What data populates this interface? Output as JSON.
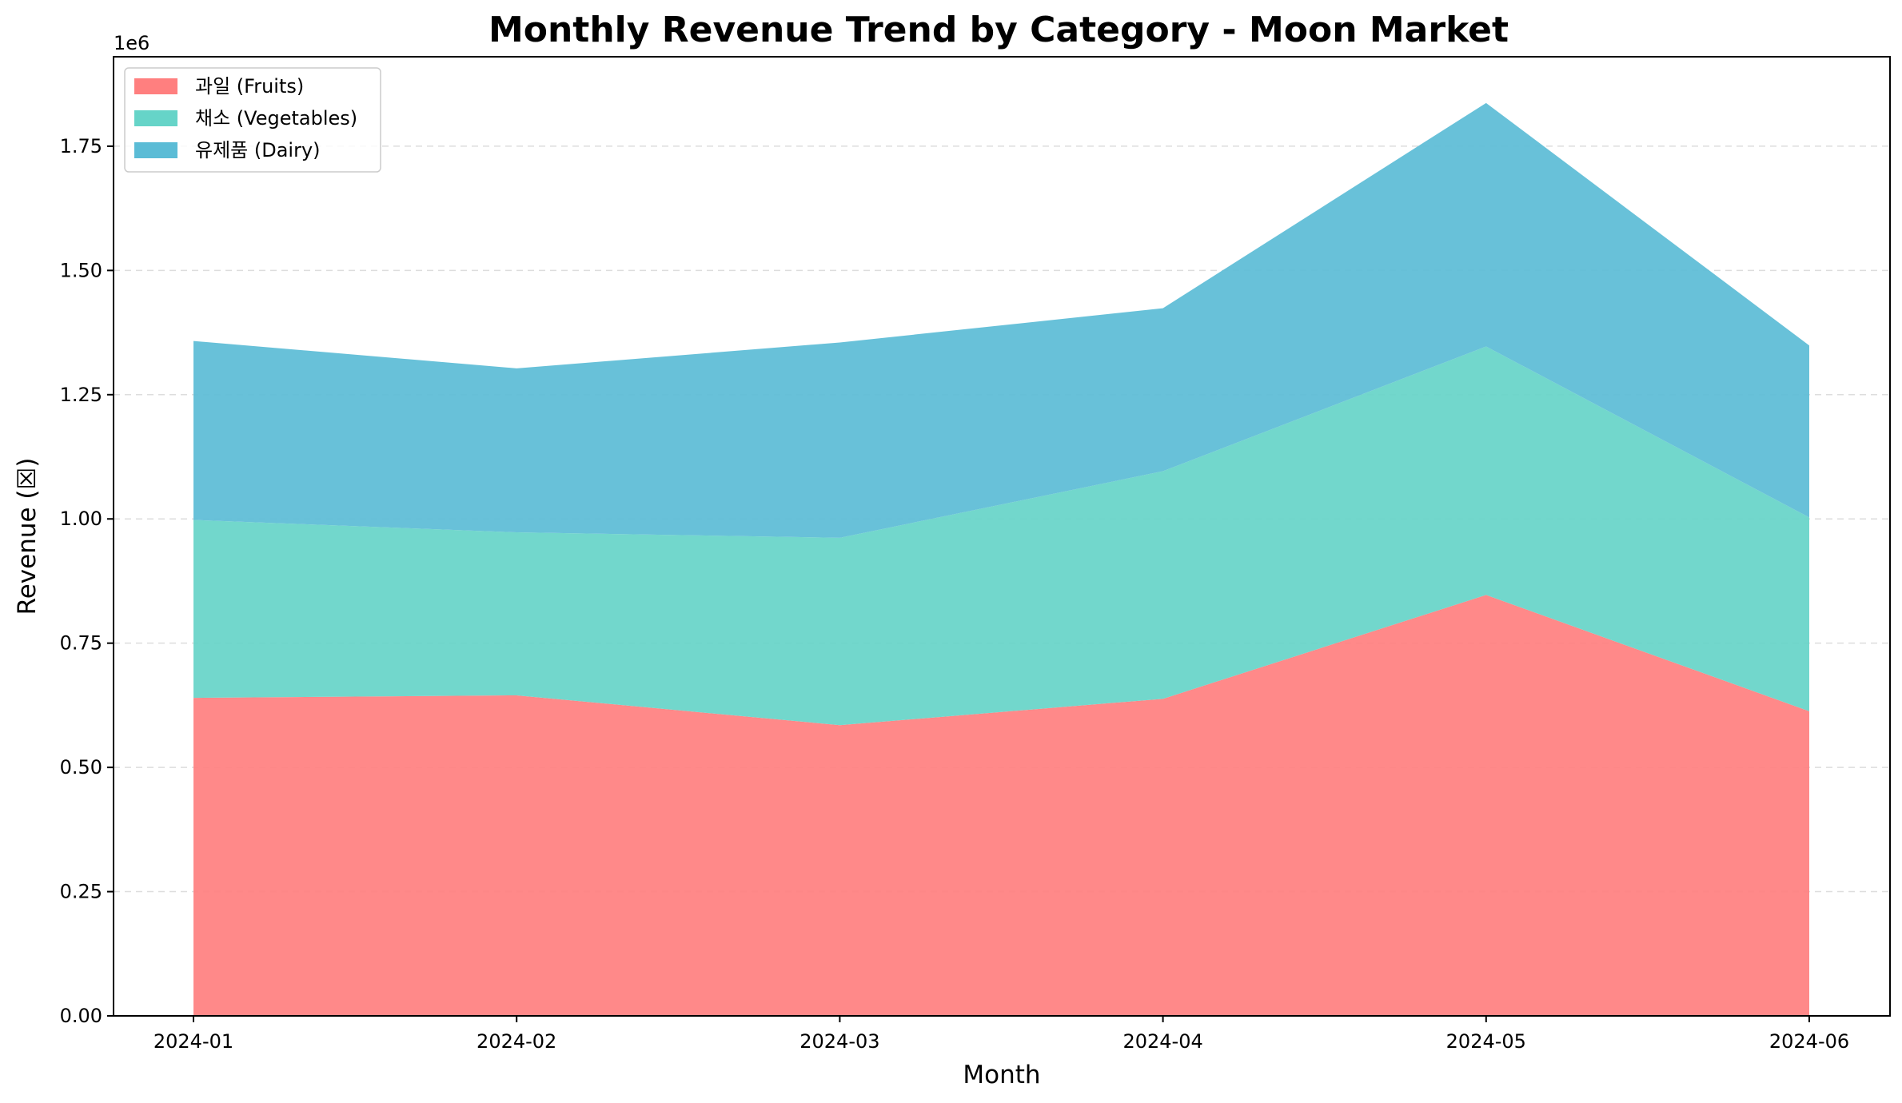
{
  "chart_data": {
    "type": "area",
    "stacked": true,
    "title": "Monthly Revenue Trend by Category - Moon Market",
    "xlabel": "Month",
    "ylabel": "Revenue (☒)",
    "y_offset_label": "1e6",
    "x": [
      "2024-01",
      "2024-02",
      "2024-03",
      "2024-04",
      "2024-05",
      "2024-06"
    ],
    "ylim": [
      0,
      1.93
    ],
    "yticks": [
      0.0,
      0.25,
      0.5,
      0.75,
      1.0,
      1.25,
      1.5,
      1.75
    ],
    "ytick_labels": [
      "0.00",
      "0.25",
      "0.50",
      "0.75",
      "1.00",
      "1.25",
      "1.50",
      "1.75"
    ],
    "grid": "y-dashed",
    "legend_position": "top-left",
    "series": [
      {
        "name": "과일 (Fruits)",
        "color": "#ff7f7f",
        "values": [
          0.64,
          0.645,
          0.585,
          0.638,
          0.847,
          0.613
        ]
      },
      {
        "name": "채소 (Vegetables)",
        "color": "#66d4c8",
        "values": [
          0.358,
          0.328,
          0.377,
          0.458,
          0.5,
          0.39
        ]
      },
      {
        "name": "유제품 (Dairy)",
        "color": "#5bbcd6",
        "values": [
          0.36,
          0.33,
          0.393,
          0.328,
          0.49,
          0.346
        ]
      }
    ]
  }
}
